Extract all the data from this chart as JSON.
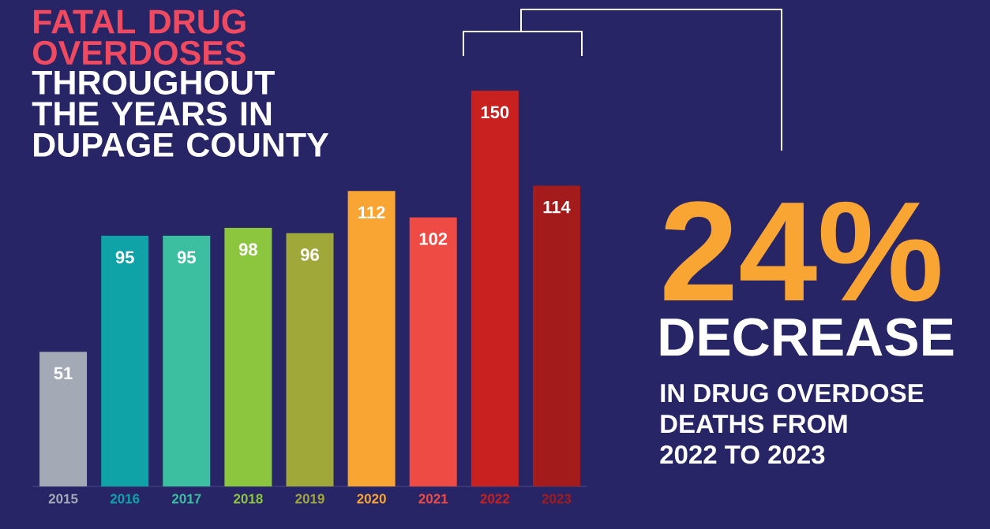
{
  "chart_data": {
    "type": "bar",
    "title": "FATAL DRUG OVERDOSES",
    "subtitle": "THROUGHOUT THE YEARS IN DUPAGE COUNTY",
    "categories": [
      "2015",
      "2016",
      "2017",
      "2018",
      "2019",
      "2020",
      "2021",
      "2022",
      "2023"
    ],
    "values": [
      51,
      95,
      95,
      98,
      96,
      112,
      102,
      150,
      114
    ],
    "colors": [
      "#a3aab5",
      "#0fa3a8",
      "#3cbfa0",
      "#8cc63f",
      "#a0a83a",
      "#f9a533",
      "#ee4b45",
      "#c9211f",
      "#a31b1b"
    ],
    "data_labels": true,
    "ylim": [
      0,
      150
    ],
    "tick_labels": "x",
    "annotations": [
      "24%",
      "DECREASE",
      "IN DRUG OVERDOSE",
      "DEATHS FROM",
      "2022 TO 2023"
    ]
  }
}
